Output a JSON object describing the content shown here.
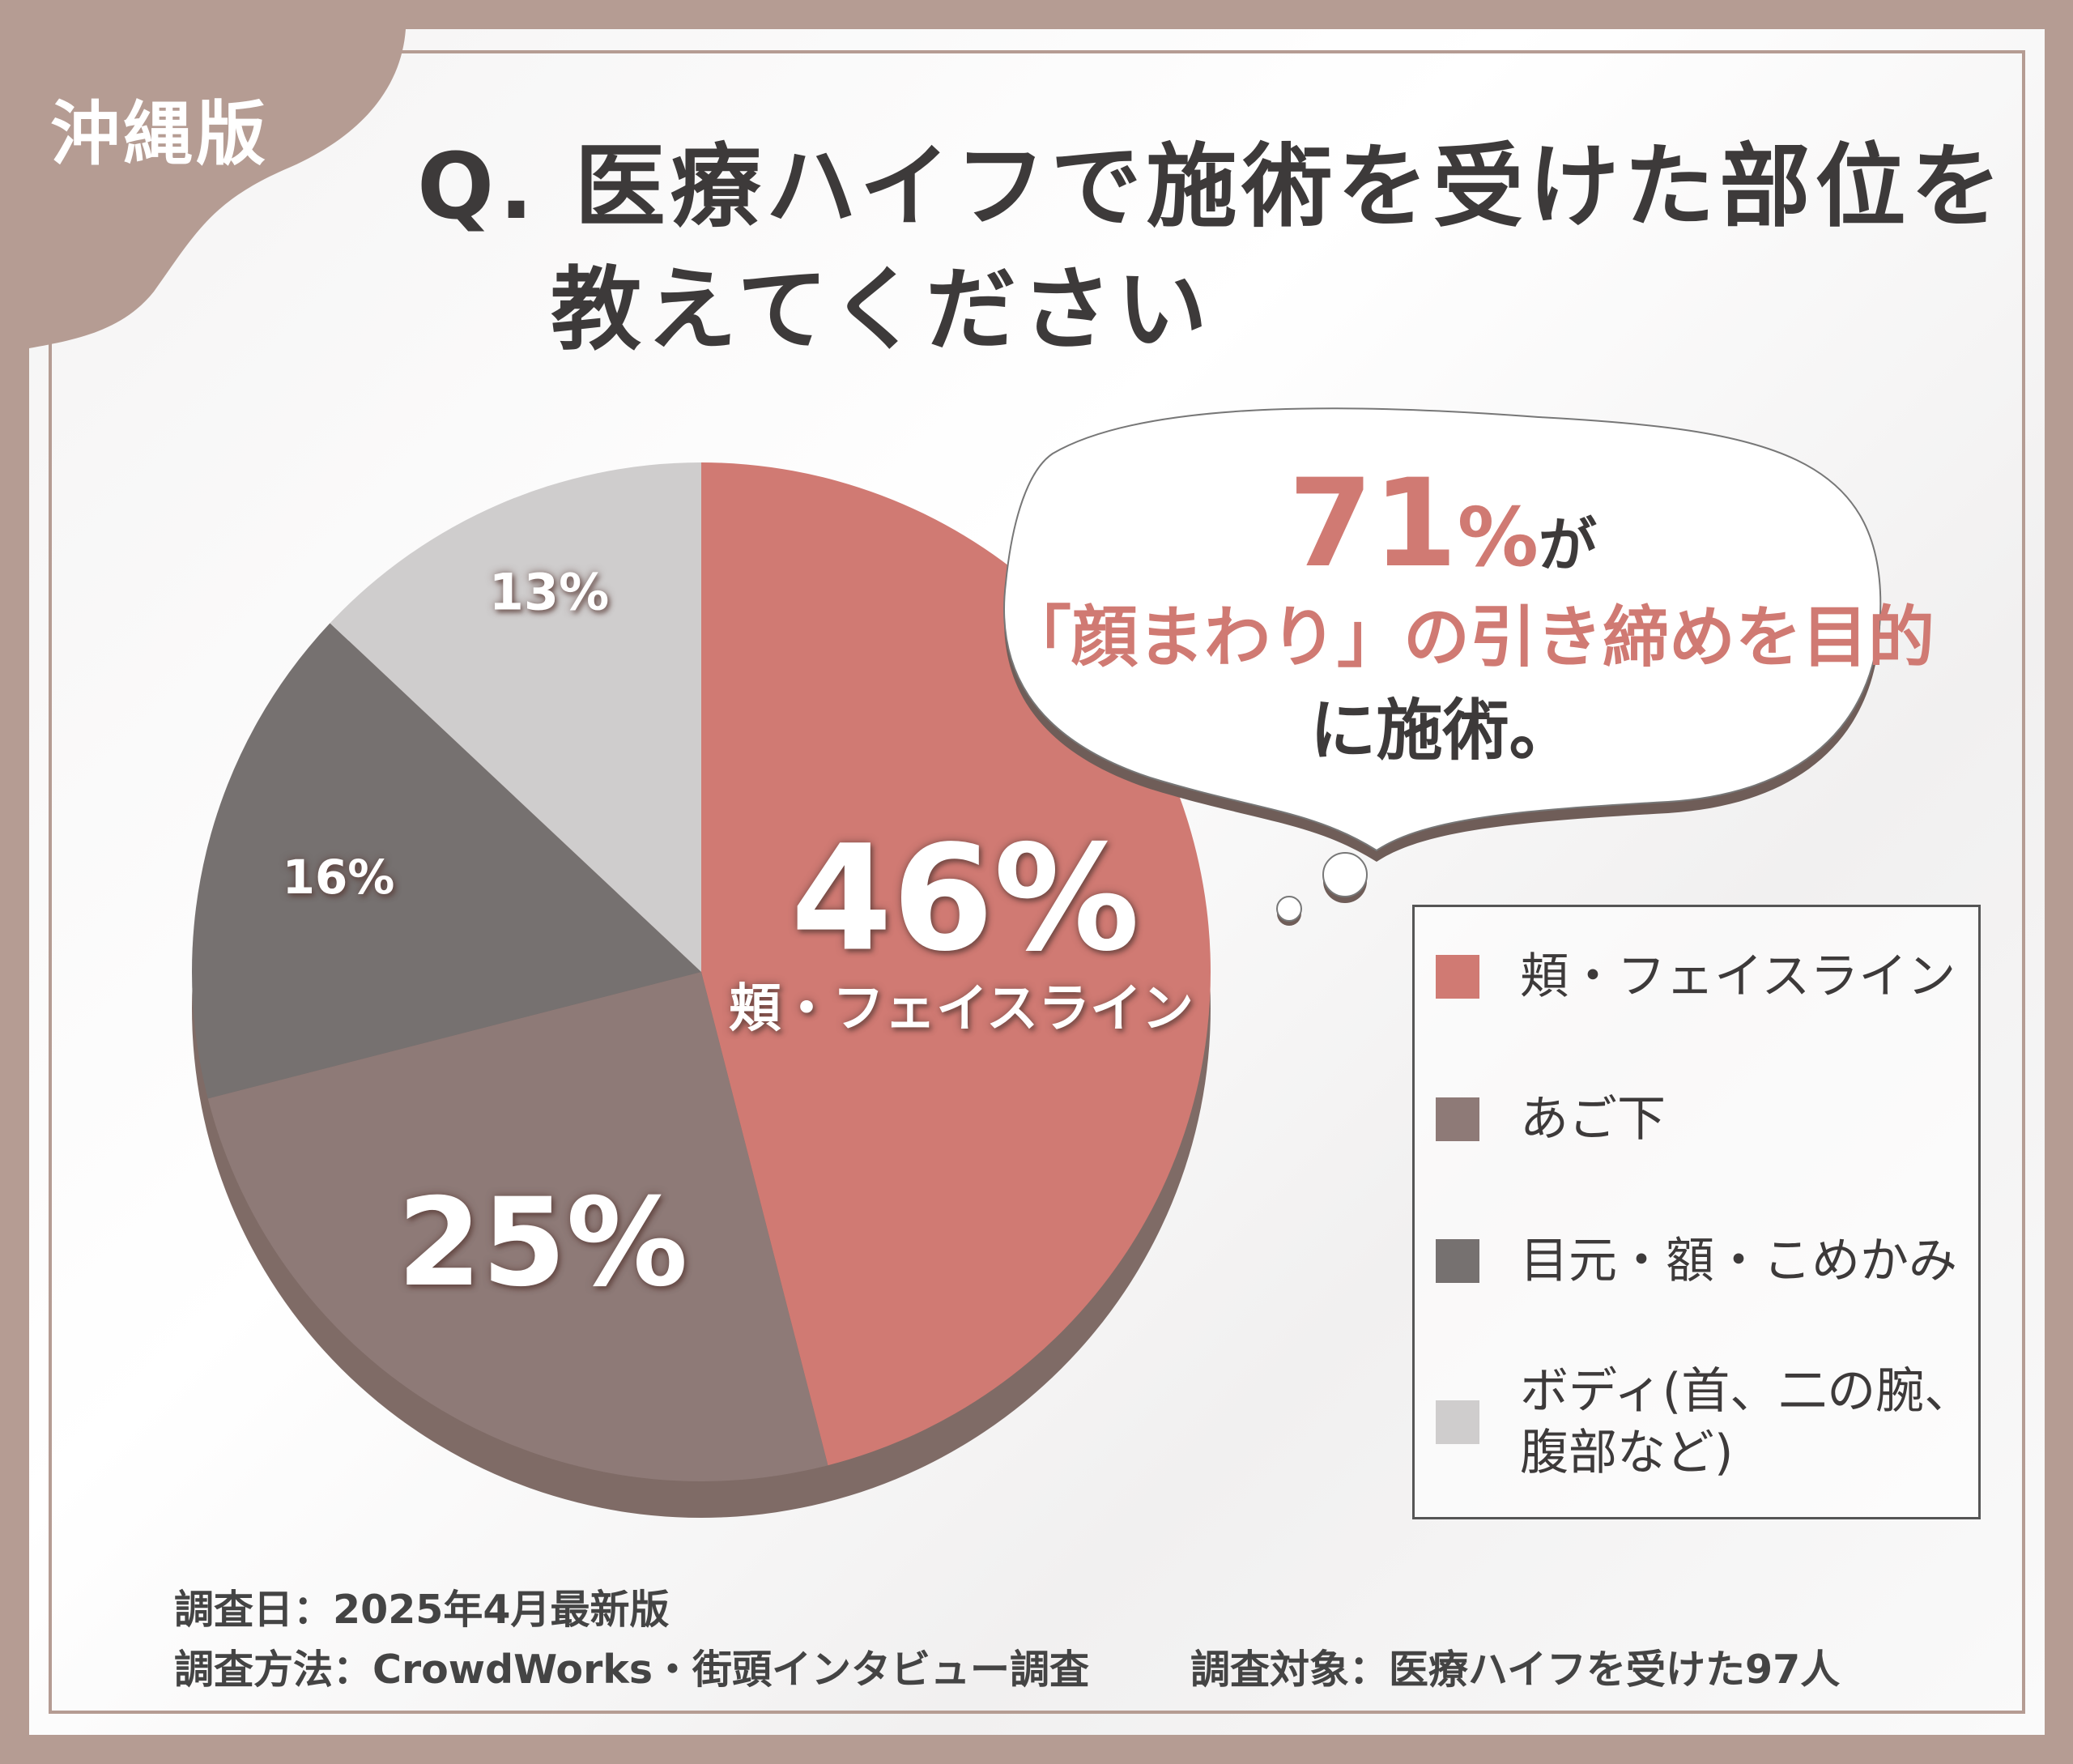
{
  "badge": "沖縄版",
  "chart_data": {
    "type": "pie",
    "title_line1": "Q. 医療ハイフで施術を受けた部位を",
    "title_line2": "教えてください",
    "start": "top",
    "direction": "clockwise",
    "slices": [
      {
        "label": "頬・フェイスライン",
        "value": 46,
        "display": "46%",
        "color": "#d07a73"
      },
      {
        "label": "あご下",
        "value": 25,
        "display": "25%",
        "color": "#8e7a77"
      },
      {
        "label": "目元・額・こめかみ",
        "value": 16,
        "display": "16%",
        "color": "#767170"
      },
      {
        "label": "ボディ(首、二の腕、腹部など)",
        "value": 13,
        "display": "13%",
        "color": "#cfcdcd"
      }
    ],
    "main_slice_caption": "頬・フェイスライン",
    "legend": {
      "placement": "right",
      "items": [
        "頬・フェイスライン",
        "あご下",
        "目元・額・こめかみ",
        "ボディ(首、二の腕、腹部など)"
      ],
      "item4_line1": "ボディ(首、二の腕、",
      "item4_line2": "腹部など)"
    }
  },
  "callout": {
    "number": "71",
    "percent": "%",
    "suffix": "が",
    "line2": "「顔まわり」の引き締めを目的",
    "line3": "に施術。",
    "accent_color": "#d07a73"
  },
  "footer": {
    "date": "調査日：2025年4月最新版",
    "method": "調査方法：CrowdWorks・街頭インタビュー調査",
    "target": "調査対象：医療ハイフを受けた97人"
  }
}
